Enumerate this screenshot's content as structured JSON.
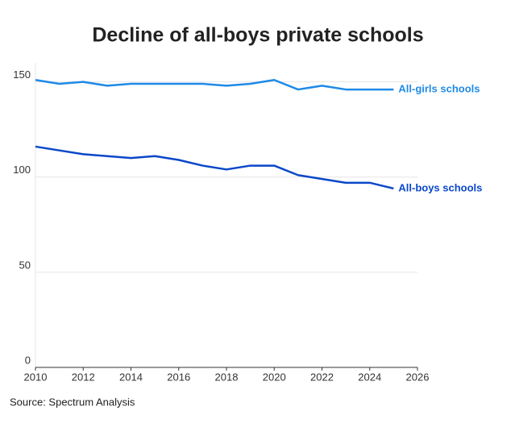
{
  "chart_data": {
    "type": "line",
    "title": "Decline of all-boys private schools",
    "source": "Source: Spectrum Analysis",
    "x": [
      2010,
      2011,
      2012,
      2013,
      2014,
      2015,
      2016,
      2017,
      2018,
      2019,
      2020,
      2021,
      2022,
      2023,
      2024,
      2025
    ],
    "series": [
      {
        "name": "All-girls schools",
        "color": "#1f8ae6",
        "values": [
          151,
          149,
          150,
          148,
          149,
          149,
          149,
          149,
          148,
          149,
          151,
          146,
          148,
          146,
          146,
          146
        ]
      },
      {
        "name": "All-boys schools",
        "color": "#0a47c9",
        "values": [
          116,
          114,
          112,
          111,
          110,
          111,
          109,
          106,
          104,
          106,
          106,
          101,
          99,
          97,
          97,
          94
        ]
      }
    ],
    "xlim": [
      2010,
      2026
    ],
    "xticks": [
      2010,
      2012,
      2014,
      2016,
      2018,
      2020,
      2022,
      2024,
      2026
    ],
    "ylim": [
      0,
      160
    ],
    "yticks": [
      0,
      50,
      100,
      150
    ],
    "grid": true
  }
}
